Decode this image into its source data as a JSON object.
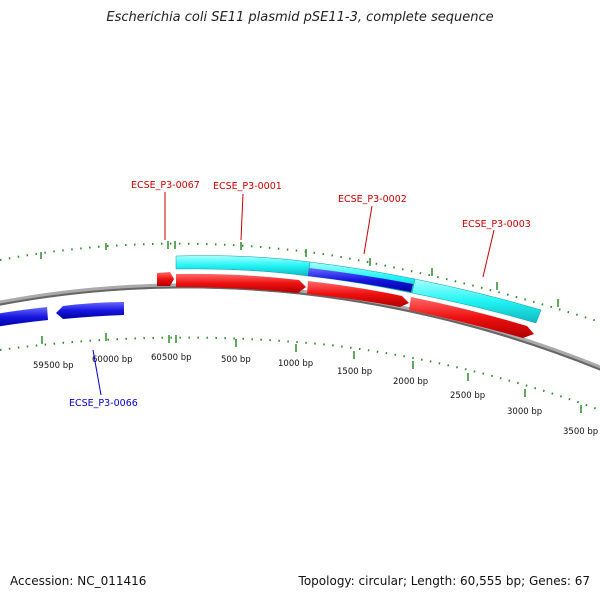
{
  "title": "Escherichia coli SE11 plasmid pSE11-3, complete sequence",
  "footer": {
    "accession": "Accession: NC_011416",
    "summary": "Topology: circular; Length: 60,555 bp; Genes: 67"
  },
  "colors": {
    "forward_gene": "#ff1a1a",
    "reverse_gene": "#1a1aee",
    "cyan_gene": "#33ffff",
    "backbone": "#888888",
    "tick": "#2e8b2e",
    "forward_label": "#cc0000",
    "reverse_label": "#0000cc"
  },
  "plasmid": {
    "length_bp": 60555,
    "topology": "circular",
    "genes_total": 67
  },
  "tick_labels": [
    {
      "bp": 59500,
      "text": "59500 bp"
    },
    {
      "bp": 60000,
      "text": "60000 bp"
    },
    {
      "bp": 60500,
      "text": "60500 bp"
    },
    {
      "bp": 500,
      "text": "500 bp"
    },
    {
      "bp": 1000,
      "text": "1000 bp"
    },
    {
      "bp": 1500,
      "text": "1500 bp"
    },
    {
      "bp": 2000,
      "text": "2000 bp"
    },
    {
      "bp": 2500,
      "text": "2500 bp"
    },
    {
      "bp": 3000,
      "text": "3000 bp"
    },
    {
      "bp": 3500,
      "text": "3500 bp"
    }
  ],
  "gene_labels": [
    {
      "text": "ECSE_P3-0067",
      "strand": "forward"
    },
    {
      "text": "ECSE_P3-0001",
      "strand": "forward"
    },
    {
      "text": "ECSE_P3-0002",
      "strand": "forward"
    },
    {
      "text": "ECSE_P3-0003",
      "strand": "forward"
    },
    {
      "text": "ECSE_P3-0066",
      "strand": "reverse"
    }
  ]
}
